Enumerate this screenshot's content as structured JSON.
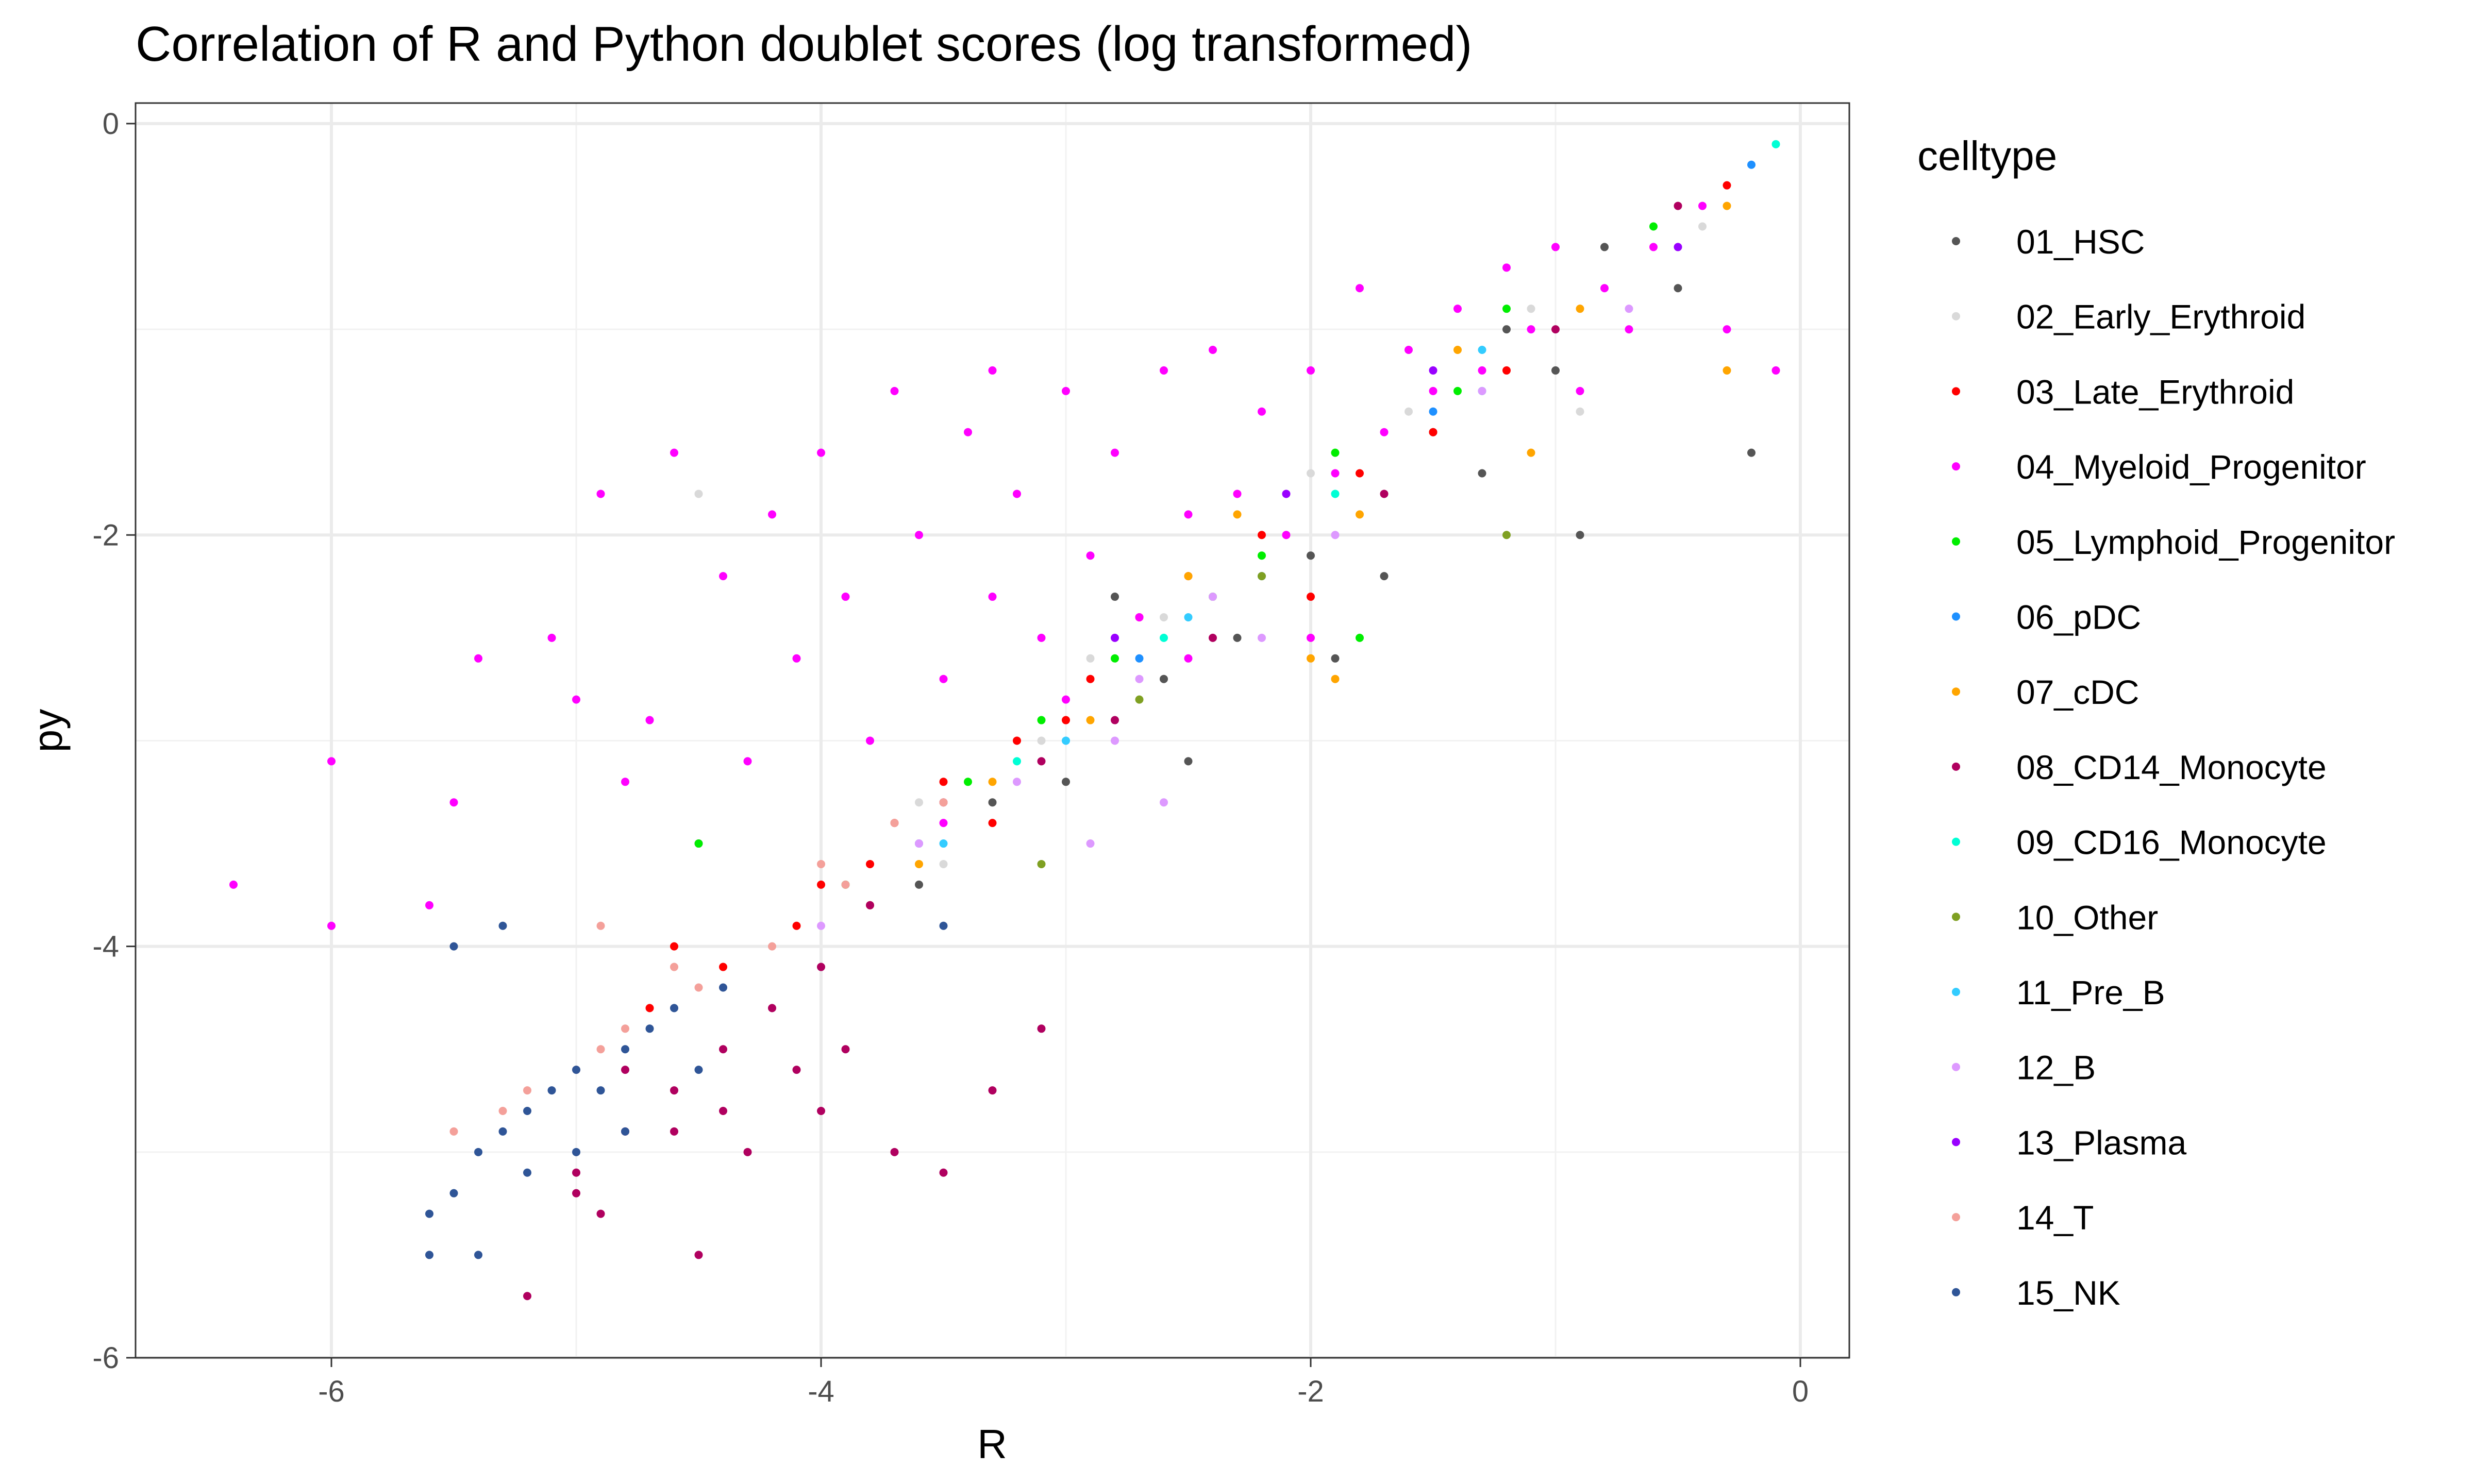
{
  "chart_data": {
    "type": "scatter",
    "title": "Correlation of R and Python doublet scores (log transformed)",
    "xlabel": "R",
    "ylabel": "py",
    "xlim": [
      -6.8,
      0.2
    ],
    "ylim": [
      -6.0,
      0.1
    ],
    "xticks": [
      -6,
      -4,
      -2,
      0
    ],
    "yticks": [
      -6,
      -4,
      -2,
      0
    ],
    "xtick_labels": [
      "-6",
      "-4",
      "-2",
      "0"
    ],
    "ytick_labels": [
      "-6",
      "-4",
      "-2",
      "0"
    ],
    "grid": true,
    "legend": {
      "title": "celltype",
      "position": "right"
    },
    "series": [
      {
        "name": "01_HSC",
        "color": "#555555",
        "points": [
          [
            -0.8,
            -0.6
          ],
          [
            -0.2,
            -1.6
          ],
          [
            -0.9,
            -2.0
          ],
          [
            -1.3,
            -1.7
          ],
          [
            -1.7,
            -2.2
          ],
          [
            -2.0,
            -2.1
          ],
          [
            -2.3,
            -2.5
          ],
          [
            -2.6,
            -2.7
          ],
          [
            -3.0,
            -3.2
          ],
          [
            -3.3,
            -3.3
          ],
          [
            -3.6,
            -3.7
          ],
          [
            -1.0,
            -1.2
          ],
          [
            -1.5,
            -1.5
          ],
          [
            -2.8,
            -2.3
          ],
          [
            -1.9,
            -2.6
          ],
          [
            -2.5,
            -3.1
          ],
          [
            -1.2,
            -1.0
          ],
          [
            -0.5,
            -0.8
          ]
        ]
      },
      {
        "name": "02_Early_Erythroid",
        "color": "#d9d9d9",
        "points": [
          [
            -0.4,
            -0.5
          ],
          [
            -1.1,
            -0.9
          ],
          [
            -1.6,
            -1.4
          ],
          [
            -2.1,
            -2.0
          ],
          [
            -2.6,
            -2.4
          ],
          [
            -3.1,
            -3.0
          ],
          [
            -3.5,
            -3.6
          ],
          [
            -4.5,
            -1.8
          ],
          [
            -0.9,
            -1.4
          ],
          [
            -2.0,
            -1.7
          ],
          [
            -2.9,
            -2.6
          ],
          [
            -3.6,
            -3.3
          ]
        ]
      },
      {
        "name": "03_Late_Erythroid",
        "color": "#ff0000",
        "points": [
          [
            -0.3,
            -0.3
          ],
          [
            -1.2,
            -1.2
          ],
          [
            -1.8,
            -1.7
          ],
          [
            -2.2,
            -2.0
          ],
          [
            -2.5,
            -2.2
          ],
          [
            -2.9,
            -2.7
          ],
          [
            -3.2,
            -3.0
          ],
          [
            -3.5,
            -3.2
          ],
          [
            -3.8,
            -3.6
          ],
          [
            -4.1,
            -3.9
          ],
          [
            -4.4,
            -4.1
          ],
          [
            -4.7,
            -4.3
          ],
          [
            -2.7,
            -2.4
          ],
          [
            -3.3,
            -3.4
          ],
          [
            -4.0,
            -3.7
          ],
          [
            -4.6,
            -4.0
          ],
          [
            -3.0,
            -2.9
          ],
          [
            -2.0,
            -2.3
          ],
          [
            -1.5,
            -1.5
          ],
          [
            -3.7,
            -3.4
          ]
        ]
      },
      {
        "name": "04_Myeloid_Progenitor",
        "color": "#ff00ff",
        "points": [
          [
            -6.4,
            -3.7
          ],
          [
            -6.0,
            -3.1
          ],
          [
            -6.0,
            -3.9
          ],
          [
            -5.6,
            -3.8
          ],
          [
            -5.5,
            -3.3
          ],
          [
            -5.4,
            -2.6
          ],
          [
            -5.1,
            -2.5
          ],
          [
            -4.9,
            -1.8
          ],
          [
            -4.7,
            -2.9
          ],
          [
            -4.6,
            -1.6
          ],
          [
            -4.5,
            -3.5
          ],
          [
            -4.4,
            -2.2
          ],
          [
            -4.3,
            -3.1
          ],
          [
            -4.2,
            -1.9
          ],
          [
            -4.1,
            -2.6
          ],
          [
            -4.0,
            -1.6
          ],
          [
            -3.9,
            -2.3
          ],
          [
            -3.8,
            -3.0
          ],
          [
            -3.7,
            -1.3
          ],
          [
            -3.6,
            -2.0
          ],
          [
            -3.5,
            -2.7
          ],
          [
            -3.4,
            -1.5
          ],
          [
            -3.3,
            -2.3
          ],
          [
            -3.2,
            -1.8
          ],
          [
            -3.1,
            -2.5
          ],
          [
            -3.0,
            -1.3
          ],
          [
            -2.9,
            -2.1
          ],
          [
            -2.8,
            -1.6
          ],
          [
            -2.7,
            -2.4
          ],
          [
            -2.6,
            -1.2
          ],
          [
            -2.5,
            -1.9
          ],
          [
            -2.4,
            -1.1
          ],
          [
            -2.3,
            -1.8
          ],
          [
            -2.2,
            -1.4
          ],
          [
            -2.1,
            -2.0
          ],
          [
            -2.0,
            -1.2
          ],
          [
            -1.9,
            -1.7
          ],
          [
            -1.8,
            -0.8
          ],
          [
            -1.7,
            -1.5
          ],
          [
            -1.6,
            -1.1
          ],
          [
            -1.5,
            -1.3
          ],
          [
            -1.4,
            -0.9
          ],
          [
            -1.3,
            -1.2
          ],
          [
            -1.2,
            -0.7
          ],
          [
            -1.1,
            -1.0
          ],
          [
            -1.0,
            -0.6
          ],
          [
            -0.9,
            -1.3
          ],
          [
            -0.8,
            -0.8
          ],
          [
            -0.7,
            -1.0
          ],
          [
            -0.6,
            -0.6
          ],
          [
            -0.4,
            -0.4
          ],
          [
            -0.3,
            -1.0
          ],
          [
            -0.1,
            -1.2
          ],
          [
            -3.5,
            -3.4
          ],
          [
            -3.0,
            -2.8
          ],
          [
            -2.5,
            -2.6
          ],
          [
            -4.8,
            -3.2
          ],
          [
            -5.0,
            -2.8
          ],
          [
            -3.3,
            -1.2
          ],
          [
            -2.0,
            -2.5
          ]
        ]
      },
      {
        "name": "05_Lymphoid_Progenitor",
        "color": "#00ee00",
        "points": [
          [
            -0.6,
            -0.5
          ],
          [
            -1.4,
            -1.3
          ],
          [
            -1.9,
            -1.6
          ],
          [
            -2.4,
            -2.3
          ],
          [
            -2.8,
            -2.6
          ],
          [
            -3.1,
            -2.9
          ],
          [
            -3.4,
            -3.2
          ],
          [
            -3.9,
            -3.7
          ],
          [
            -1.2,
            -0.9
          ],
          [
            -2.2,
            -2.1
          ],
          [
            -4.5,
            -3.5
          ],
          [
            -1.8,
            -2.5
          ]
        ]
      },
      {
        "name": "06_pDC",
        "color": "#1e90ff",
        "points": [
          [
            -0.2,
            -0.2
          ],
          [
            -1.5,
            -1.4
          ],
          [
            -2.7,
            -2.6
          ],
          [
            -3.6,
            -3.5
          ],
          [
            -2.2,
            -2.2
          ]
        ]
      },
      {
        "name": "07_cDC",
        "color": "#ffa500",
        "points": [
          [
            -0.3,
            -0.4
          ],
          [
            -0.3,
            -1.2
          ],
          [
            -0.9,
            -0.9
          ],
          [
            -1.4,
            -1.1
          ],
          [
            -1.8,
            -1.9
          ],
          [
            -2.0,
            -2.6
          ],
          [
            -2.5,
            -2.2
          ],
          [
            -2.9,
            -2.9
          ],
          [
            -3.3,
            -3.2
          ],
          [
            -3.6,
            -3.6
          ],
          [
            -3.8,
            -3.8
          ],
          [
            -1.1,
            -1.6
          ],
          [
            -1.9,
            -2.7
          ],
          [
            -2.3,
            -1.9
          ]
        ]
      },
      {
        "name": "08_CD14_Monocyte",
        "color": "#b0005f",
        "points": [
          [
            -0.5,
            -0.4
          ],
          [
            -1.0,
            -1.0
          ],
          [
            -1.7,
            -1.8
          ],
          [
            -2.4,
            -2.5
          ],
          [
            -3.1,
            -3.1
          ],
          [
            -3.5,
            -3.3
          ],
          [
            -3.8,
            -3.8
          ],
          [
            -4.0,
            -4.1
          ],
          [
            -4.2,
            -4.3
          ],
          [
            -4.4,
            -4.5
          ],
          [
            -4.6,
            -4.7
          ],
          [
            -4.8,
            -4.9
          ],
          [
            -5.0,
            -5.1
          ],
          [
            -5.2,
            -5.7
          ],
          [
            -4.9,
            -5.3
          ],
          [
            -4.6,
            -4.9
          ],
          [
            -4.3,
            -5.0
          ],
          [
            -4.0,
            -4.8
          ],
          [
            -3.7,
            -5.0
          ],
          [
            -3.5,
            -5.1
          ],
          [
            -4.5,
            -5.5
          ],
          [
            -3.1,
            -4.4
          ],
          [
            -2.8,
            -2.9
          ],
          [
            -3.3,
            -4.7
          ],
          [
            -4.1,
            -4.6
          ],
          [
            -4.8,
            -4.6
          ],
          [
            -3.9,
            -4.5
          ],
          [
            -5.0,
            -5.2
          ],
          [
            -4.4,
            -4.8
          ]
        ]
      },
      {
        "name": "09_CD16_Monocyte",
        "color": "#00ffd5",
        "points": [
          [
            -0.1,
            -0.1
          ],
          [
            -1.3,
            -1.3
          ],
          [
            -2.6,
            -2.5
          ],
          [
            -3.2,
            -3.1
          ],
          [
            -1.9,
            -1.8
          ]
        ]
      },
      {
        "name": "10_Other",
        "color": "#7fa022",
        "points": [
          [
            -1.2,
            -2.0
          ],
          [
            -2.2,
            -2.2
          ],
          [
            -3.1,
            -3.6
          ],
          [
            -2.7,
            -2.8
          ]
        ]
      },
      {
        "name": "11_Pre_B",
        "color": "#33ccff",
        "points": [
          [
            -1.3,
            -1.1
          ],
          [
            -2.5,
            -2.4
          ],
          [
            -3.0,
            -3.0
          ],
          [
            -3.5,
            -3.5
          ]
        ]
      },
      {
        "name": "12_B",
        "color": "#dd99ff",
        "points": [
          [
            -0.7,
            -0.9
          ],
          [
            -1.3,
            -1.3
          ],
          [
            -1.9,
            -2.0
          ],
          [
            -2.4,
            -2.3
          ],
          [
            -2.8,
            -3.0
          ],
          [
            -3.2,
            -3.2
          ],
          [
            -3.6,
            -3.5
          ],
          [
            -4.0,
            -3.9
          ],
          [
            -2.6,
            -3.3
          ],
          [
            -2.7,
            -2.7
          ],
          [
            -2.2,
            -2.5
          ],
          [
            -2.9,
            -3.5
          ]
        ]
      },
      {
        "name": "13_Plasma",
        "color": "#9900ff",
        "points": [
          [
            -0.5,
            -0.6
          ],
          [
            -1.5,
            -1.2
          ],
          [
            -2.1,
            -1.8
          ],
          [
            -2.8,
            -2.5
          ]
        ]
      },
      {
        "name": "14_T",
        "color": "#f4a09a",
        "points": [
          [
            -3.5,
            -3.3
          ],
          [
            -3.9,
            -3.7
          ],
          [
            -4.2,
            -4.0
          ],
          [
            -4.5,
            -4.2
          ],
          [
            -4.8,
            -4.4
          ],
          [
            -5.0,
            -4.6
          ],
          [
            -5.2,
            -4.7
          ],
          [
            -5.3,
            -4.8
          ],
          [
            -4.0,
            -3.6
          ],
          [
            -4.6,
            -4.1
          ],
          [
            -4.9,
            -4.5
          ],
          [
            -5.5,
            -4.9
          ],
          [
            -4.9,
            -3.9
          ],
          [
            -3.7,
            -3.4
          ]
        ]
      },
      {
        "name": "15_NK",
        "color": "#2f5597",
        "points": [
          [
            -5.6,
            -5.3
          ],
          [
            -5.5,
            -5.2
          ],
          [
            -5.4,
            -5.0
          ],
          [
            -5.3,
            -4.9
          ],
          [
            -5.2,
            -4.8
          ],
          [
            -5.1,
            -4.7
          ],
          [
            -5.0,
            -4.6
          ],
          [
            -4.9,
            -4.7
          ],
          [
            -4.8,
            -4.5
          ],
          [
            -4.7,
            -4.4
          ],
          [
            -4.6,
            -4.3
          ],
          [
            -5.4,
            -5.5
          ],
          [
            -5.2,
            -5.1
          ],
          [
            -5.0,
            -5.0
          ],
          [
            -4.8,
            -4.9
          ],
          [
            -5.3,
            -3.9
          ],
          [
            -5.5,
            -4.0
          ],
          [
            -4.5,
            -4.6
          ],
          [
            -5.6,
            -5.5
          ],
          [
            -3.5,
            -3.9
          ],
          [
            -4.4,
            -4.2
          ]
        ]
      }
    ]
  }
}
